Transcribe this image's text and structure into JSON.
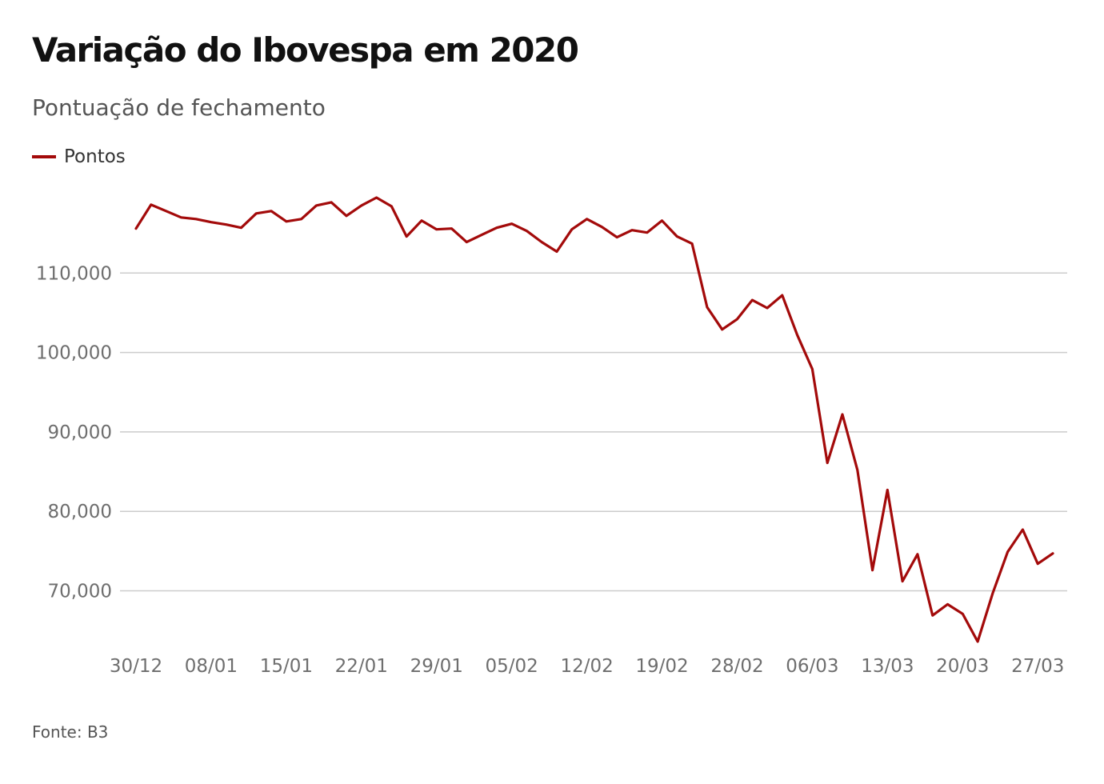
{
  "header": {
    "title": "Variação do Ibovespa em 2020",
    "subtitle": "Pontuação de fechamento"
  },
  "legend": {
    "label": "Pontos"
  },
  "footer": {
    "source": "Fonte: B3"
  },
  "colors": {
    "line": "#a30a0a",
    "grid": "#cccccc",
    "tick_text": "#6e6e6e",
    "title_text": "#111111"
  },
  "chart_data": {
    "type": "line",
    "title": "Variação do Ibovespa em 2020",
    "subtitle": "Pontuação de fechamento",
    "xlabel": "",
    "ylabel": "",
    "y_ticks": [
      "70,000",
      "80,000",
      "90,000",
      "100,000",
      "110,000"
    ],
    "y_tick_values": [
      70000,
      80000,
      90000,
      100000,
      110000
    ],
    "x_tick_labels": [
      "30/12",
      "08/01",
      "15/01",
      "22/01",
      "29/01",
      "05/02",
      "12/02",
      "19/02",
      "28/02",
      "06/03",
      "13/03",
      "20/03",
      "27/03"
    ],
    "x_tick_index": [
      0,
      5,
      10,
      15,
      20,
      25,
      30,
      35,
      40,
      45,
      50,
      55,
      60
    ],
    "ylim": [
      63000,
      120000
    ],
    "grid": true,
    "legend_position": "top-left",
    "series": [
      {
        "name": "Pontos",
        "values": [
          115600,
          118600,
          117800,
          117000,
          116800,
          116400,
          116100,
          115700,
          117500,
          117800,
          116500,
          116800,
          118500,
          118900,
          117200,
          118500,
          119500,
          118400,
          114600,
          116600,
          115500,
          115600,
          113900,
          114800,
          115700,
          116200,
          115300,
          113900,
          112700,
          115500,
          116800,
          115800,
          114500,
          115400,
          115100,
          116600,
          114600,
          113700,
          105700,
          102900,
          104200,
          106600,
          105600,
          107200,
          102200,
          97900,
          86100,
          92200,
          85200,
          72600,
          82700,
          71200,
          74600,
          66900,
          68300,
          67100,
          63600,
          69700,
          74900,
          77700,
          73400,
          74700
        ]
      }
    ]
  }
}
